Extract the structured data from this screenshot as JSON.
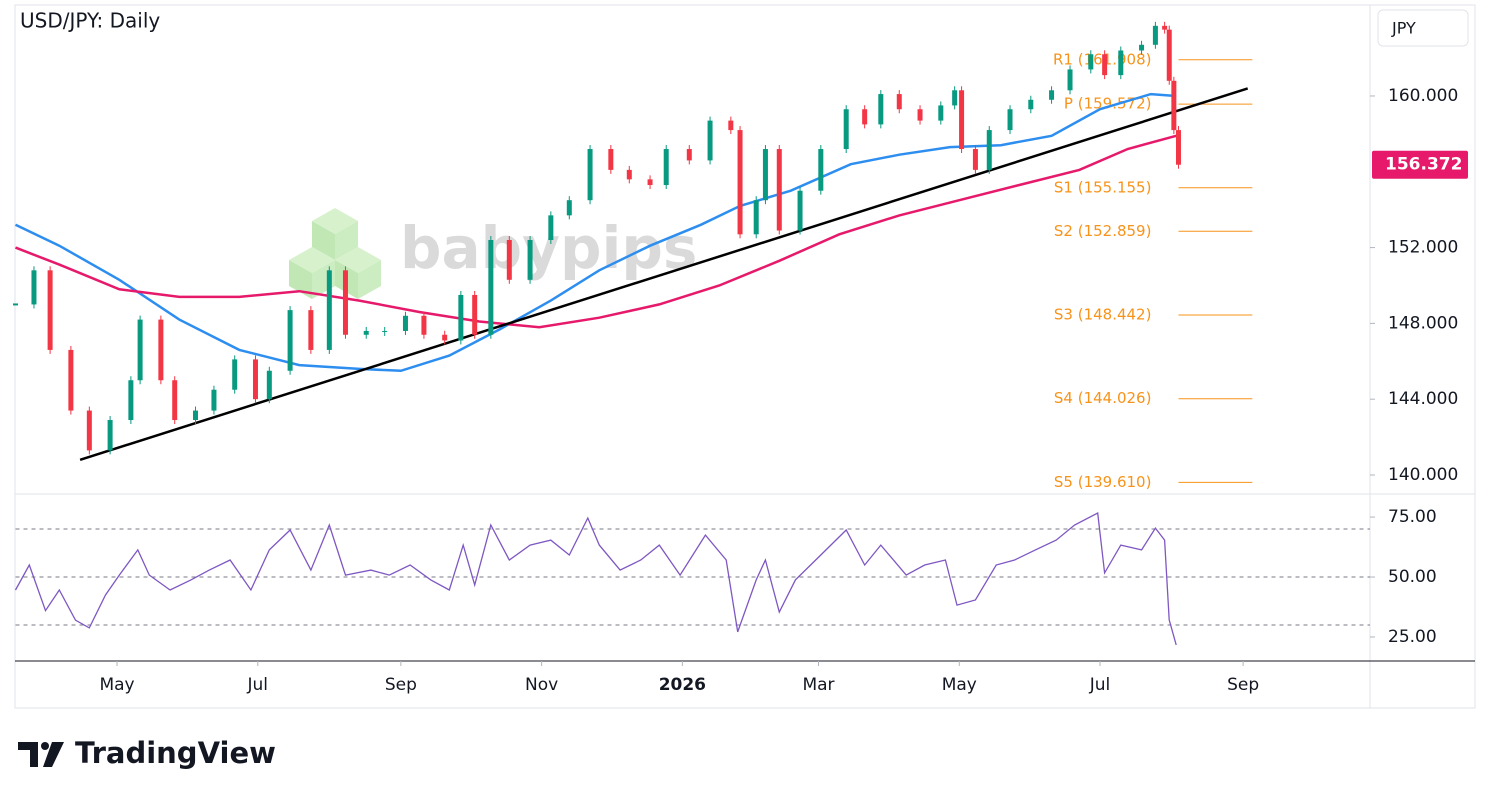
{
  "header": {
    "title": "USD/JPY: Daily",
    "currency": "JPY",
    "watermark": "babypips",
    "brand": "TradingView"
  },
  "chart_data": [
    {
      "type": "candlestick",
      "up_color": "#089981",
      "down_color": "#f23645",
      "x": [
        0,
        8,
        15,
        24,
        32,
        41,
        50,
        54,
        63,
        69,
        78,
        86,
        95,
        104,
        110,
        119,
        128,
        136,
        143,
        152,
        160,
        169,
        177,
        186,
        193,
        199,
        206,
        214,
        223,
        232,
        240,
        249,
        258,
        266,
        275,
        282,
        292,
        301,
        310,
        314,
        321,
        325,
        331,
        340,
        349,
        360,
        368,
        375,
        383,
        392,
        401,
        407,
        410,
        416,
        422,
        431,
        440,
        449,
        457,
        466,
        472,
        479,
        488,
        494,
        498,
        500,
        502,
        504
      ],
      "values": [
        149.0,
        150.8,
        146.6,
        143.4,
        141.3,
        142.9,
        145.0,
        148.2,
        145.0,
        142.9,
        143.4,
        144.5,
        146.1,
        144.0,
        145.5,
        148.7,
        146.6,
        150.8,
        147.4,
        147.6,
        147.6,
        148.4,
        147.4,
        147.1,
        149.5,
        147.4,
        152.4,
        150.3,
        152.4,
        153.7,
        154.5,
        157.2,
        156.1,
        155.6,
        155.3,
        157.2,
        156.6,
        158.7,
        158.2,
        152.7,
        154.5,
        157.2,
        152.9,
        155.0,
        157.2,
        159.3,
        158.5,
        160.1,
        159.3,
        158.7,
        159.5,
        160.3,
        157.2,
        156.1,
        158.2,
        159.3,
        159.8,
        160.3,
        161.4,
        162.2,
        161.1,
        162.4,
        162.7,
        163.7,
        163.5,
        160.8,
        158.2,
        156.372
      ],
      "overlays": [
        {
          "color": "#2d8ef0",
          "x": [
            0,
            19,
            45,
            71,
            97,
            123,
            149,
            167,
            188,
            210,
            232,
            253,
            275,
            297,
            314,
            336,
            362,
            383,
            405,
            427,
            449,
            470,
            492,
            503
          ],
          "values": [
            153.2,
            152.1,
            150.3,
            148.2,
            146.6,
            145.8,
            145.6,
            145.5,
            146.3,
            147.7,
            149.2,
            150.8,
            152.1,
            153.2,
            154.2,
            155.0,
            156.4,
            156.9,
            157.3,
            157.4,
            157.9,
            159.3,
            160.1,
            160.0
          ]
        },
        {
          "color": "#e6196b",
          "x": [
            0,
            19,
            45,
            71,
            97,
            123,
            149,
            175,
            201,
            227,
            253,
            279,
            305,
            331,
            357,
            383,
            409,
            435,
            461,
            482,
            503
          ],
          "values": [
            152.0,
            151.1,
            149.8,
            149.4,
            149.4,
            149.7,
            149.2,
            148.6,
            148.1,
            147.8,
            148.3,
            149.0,
            150.0,
            151.3,
            152.7,
            153.7,
            154.5,
            155.3,
            156.1,
            157.2,
            157.9
          ]
        }
      ],
      "trendline": {
        "color": "#000000",
        "x": [
          28,
          534
        ],
        "values": [
          140.8,
          160.4
        ]
      },
      "pivots": {
        "color": "#f7931a",
        "x": [
          504,
          536
        ],
        "levels": [
          {
            "label": "R1 (161.908)",
            "value": 161.908
          },
          {
            "label": "P (159.572)",
            "value": 159.572
          },
          {
            "label": "S1 (155.155)",
            "value": 155.155
          },
          {
            "label": "S2 (152.859)",
            "value": 152.859
          },
          {
            "label": "S3 (148.442)",
            "value": 148.442
          },
          {
            "label": "S4 (144.026)",
            "value": 144.026
          },
          {
            "label": "S5 (139.610)",
            "value": 139.61
          }
        ]
      },
      "last_price": {
        "value": 156.372,
        "label": "156.372",
        "color": "#e6196b"
      },
      "xlim": [
        0,
        587
      ],
      "ylim": [
        139.05,
        164.8
      ],
      "yticks": [
        {
          "value": 140,
          "label": "140.000"
        },
        {
          "value": 144,
          "label": "144.000"
        },
        {
          "value": 148,
          "label": "148.000"
        },
        {
          "value": 152,
          "label": "152.000"
        },
        {
          "value": 160,
          "label": "160.000"
        }
      ],
      "xticks": [
        {
          "value": 44,
          "label": "May"
        },
        {
          "value": 105,
          "label": "Jul"
        },
        {
          "value": 167,
          "label": "Sep"
        },
        {
          "value": 228,
          "label": "Nov"
        },
        {
          "value": 289,
          "label": "2026"
        },
        {
          "value": 348,
          "label": "Mar"
        },
        {
          "value": 409,
          "label": "May"
        },
        {
          "value": 470,
          "label": "Jul"
        },
        {
          "value": 532,
          "label": "Sep"
        }
      ]
    },
    {
      "type": "line",
      "color": "#7e57c2",
      "x": [
        0,
        6,
        13,
        19,
        26,
        32,
        39,
        45,
        53,
        58,
        67,
        76,
        84,
        93,
        102,
        110,
        119,
        128,
        136,
        143,
        154,
        162,
        171,
        180,
        188,
        194,
        199,
        206,
        214,
        223,
        232,
        240,
        248,
        253,
        262,
        271,
        279,
        288,
        299,
        308,
        313,
        321,
        325,
        331,
        338,
        349,
        360,
        368,
        375,
        386,
        394,
        403,
        408,
        416,
        425,
        433,
        442,
        451,
        459,
        469,
        472,
        479,
        488,
        494,
        498,
        500,
        503
      ],
      "values": [
        44.6,
        55,
        36,
        44.6,
        32,
        28.8,
        42.5,
        50.8,
        61.3,
        50.8,
        44.6,
        48.8,
        52.9,
        57.1,
        44.6,
        61.3,
        69.6,
        52.9,
        71.7,
        50.8,
        52.9,
        50.8,
        55,
        48.8,
        44.6,
        63.3,
        46.7,
        71.7,
        57.1,
        63.3,
        65.4,
        59.2,
        74.6,
        63.3,
        52.9,
        57.1,
        63.3,
        50.8,
        67.5,
        57.1,
        27.1,
        48.8,
        57.1,
        35.4,
        48.8,
        59.2,
        69.6,
        55,
        63.3,
        50.8,
        55,
        57.1,
        38.3,
        40.4,
        55,
        57.1,
        61.3,
        65.4,
        71.7,
        76.7,
        51.7,
        63.3,
        61.3,
        70.4,
        65.4,
        32.1,
        21.7
      ],
      "levels": [
        70,
        50,
        30
      ],
      "xlim": [
        0,
        587
      ],
      "ylim": [
        15.4,
        84.2
      ],
      "yticks": [
        {
          "value": 25,
          "label": "25.00"
        },
        {
          "value": 50,
          "label": "50.00"
        },
        {
          "value": 75,
          "label": "75.00"
        }
      ]
    }
  ]
}
